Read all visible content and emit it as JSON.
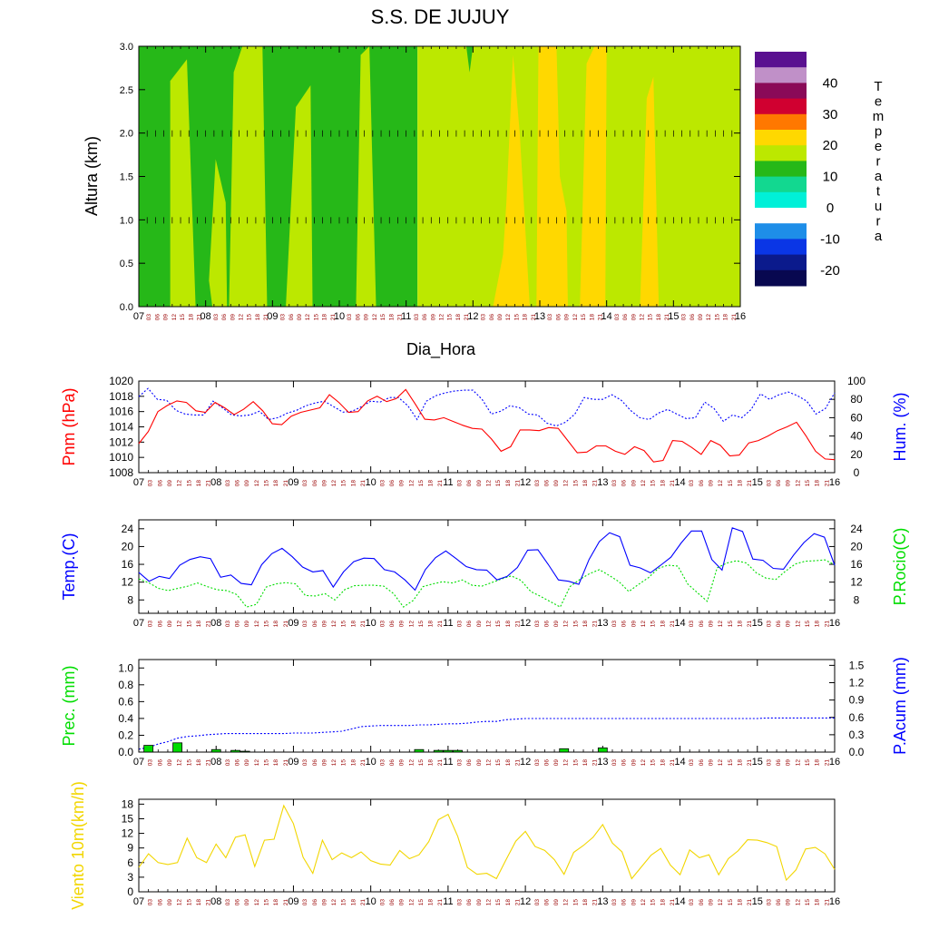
{
  "title": "S.S. DE JUJUY",
  "colors": {
    "pnm": "#ff0000",
    "hum": "#0000ff",
    "temp": "#0000ff",
    "dew": "#00dd00",
    "prec_bar": "#00dd00",
    "pacum": "#0000ff",
    "wind": "#f2d600",
    "hour_tick": "#990000"
  },
  "days": [
    "07",
    "08",
    "09",
    "10",
    "11",
    "12",
    "13",
    "14",
    "15",
    "16"
  ],
  "hours": [
    "03",
    "06",
    "09",
    "12",
    "15",
    "18",
    "21"
  ],
  "chart_data": [
    {
      "type": "heatmap",
      "ylabel": "Altura (km)",
      "xlabel": "Dia_Hora",
      "ylim": [
        0,
        3
      ],
      "yticks": [
        "0.0",
        "0.5",
        "1.0",
        "1.5",
        "2.0",
        "2.5",
        "3.0"
      ],
      "colorbar": {
        "label": "Temperatura",
        "tick_labels": [
          "40",
          "30",
          "20",
          "10",
          "0",
          "-10",
          "-20"
        ],
        "levels": [
          {
            "range": "<-20",
            "color": "#080850"
          },
          {
            "range": "-20..-15",
            "color": "#0b1a8c"
          },
          {
            "range": "-15..-10",
            "color": "#0a36e6"
          },
          {
            "range": "-10..-5",
            "color": "#1e8ee8"
          },
          {
            "range": "-5..0",
            "color": "#ffffff"
          },
          {
            "range": "0..5",
            "color": "#00f0d8"
          },
          {
            "range": "5..10",
            "color": "#12d890"
          },
          {
            "range": "10..15",
            "color": "#26b818"
          },
          {
            "range": "15..20",
            "color": "#bce800"
          },
          {
            "range": "20..25",
            "color": "#ffd800"
          },
          {
            "range": "25..30",
            "color": "#ff7800"
          },
          {
            "range": "30..35",
            "color": "#d00030"
          },
          {
            "range": "35..40",
            "color": "#8a0a58"
          },
          {
            "range": "40..45",
            "color": "#c090c8"
          },
          {
            "range": ">45",
            "color": "#5a1090"
          }
        ]
      }
    },
    {
      "type": "line",
      "ylabel_left": "Pnm (hPa)",
      "ylabel_right": "Hum. (%)",
      "ylim_left": [
        1008,
        1020
      ],
      "ylim_right": [
        0,
        100
      ],
      "yticks_left": [
        "1008",
        "1010",
        "1012",
        "1014",
        "1016",
        "1018",
        "1020"
      ],
      "yticks_right": [
        "0",
        "20",
        "40",
        "60",
        "80",
        "100"
      ],
      "series": [
        {
          "values": [
            1011.8,
            1013.4,
            1016.0,
            1016.8,
            1017.4,
            1017.2,
            1016.1,
            1015.9,
            1017.2,
            1016.5,
            1015.6,
            1016.3,
            1017.3,
            1016.1,
            1014.4,
            1014.3,
            1015.4,
            1015.9,
            1016.2,
            1016.5,
            1018.2,
            1017.2,
            1015.9,
            1016.0,
            1017.4,
            1018.0,
            1017.3,
            1017.7,
            1018.9,
            1017.0,
            1015.0,
            1014.9,
            1015.2,
            1014.7,
            1014.2,
            1013.8,
            1013.7,
            1012.4,
            1010.8,
            1011.4,
            1013.6,
            1013.6,
            1013.5,
            1013.9,
            1013.8,
            1012.2,
            1010.6,
            1010.7,
            1011.5,
            1011.5,
            1010.8,
            1010.4,
            1011.4,
            1010.9,
            1009.4,
            1009.6,
            1012.2,
            1012.1,
            1011.3,
            1010.4,
            1012.2,
            1011.6,
            1010.2,
            1010.3,
            1011.9,
            1012.2,
            1012.8,
            1013.5,
            1014.0,
            1014.6,
            1012.8,
            1010.8,
            1009.8,
            1009.7
          ]
        },
        {
          "values": [
            83,
            92,
            80,
            79,
            68,
            64,
            63,
            63,
            78,
            71,
            63,
            62,
            63,
            67,
            58,
            60,
            65,
            68,
            73,
            76,
            78,
            72,
            66,
            67,
            72,
            78,
            77,
            82,
            82,
            73,
            58,
            78,
            84,
            87,
            89,
            90,
            90,
            80,
            64,
            67,
            73,
            71,
            64,
            63,
            54,
            51,
            55,
            64,
            82,
            80,
            80,
            85,
            79,
            68,
            60,
            58,
            65,
            69,
            64,
            59,
            60,
            77,
            70,
            56,
            63,
            60,
            69,
            86,
            80,
            85,
            88,
            84,
            78,
            64,
            70,
            87
          ]
        }
      ]
    },
    {
      "type": "line",
      "ylabel_left": "Temp.(C)",
      "ylabel_right": "P.Rocio(C)",
      "ylim": [
        5,
        26
      ],
      "yticks_left": [
        "8",
        "12",
        "16",
        "20",
        "24"
      ],
      "yticks_right": [
        "8",
        "12",
        "16",
        "20",
        "24"
      ],
      "series": [
        {
          "values": [
            14.2,
            12.2,
            13.3,
            12.8,
            15.8,
            17.1,
            17.7,
            17.3,
            13.1,
            13.6,
            11.7,
            11.4,
            15.9,
            18.4,
            19.6,
            17.7,
            15.4,
            14.3,
            14.6,
            10.9,
            14.3,
            16.6,
            17.4,
            17.3,
            14.8,
            14.3,
            12.5,
            10.2,
            14.8,
            17.5,
            19.0,
            17.3,
            15.5,
            14.8,
            14.7,
            12.5,
            13.3,
            15.3,
            19.2,
            19.3,
            16.0,
            12.5,
            12.2,
            11.5,
            17.1,
            21.1,
            23.1,
            22.2,
            15.8,
            15.2,
            14.1,
            15.8,
            17.6,
            20.8,
            23.5,
            23.5,
            17.1,
            14.7,
            24.2,
            23.4,
            17.2,
            16.9,
            15.1,
            14.9,
            18.1,
            20.9,
            22.9,
            22.1,
            15.8
          ]
        },
        {
          "values": [
            12.7,
            11.9,
            10.6,
            10.1,
            10.6,
            11.1,
            11.8,
            11.0,
            10.3,
            10.1,
            9.2,
            6.4,
            7.0,
            10.9,
            11.6,
            11.9,
            11.6,
            9.0,
            8.9,
            9.4,
            8.0,
            10.3,
            11.2,
            11.3,
            11.3,
            11.1,
            9.4,
            6.4,
            7.9,
            11.0,
            11.6,
            12.1,
            11.8,
            12.5,
            11.3,
            11.1,
            11.9,
            12.7,
            13.4,
            12.4,
            9.9,
            8.8,
            7.6,
            6.4,
            11.0,
            12.6,
            13.9,
            14.8,
            13.5,
            12.1,
            9.9,
            11.5,
            13.0,
            15.1,
            15.8,
            15.6,
            11.6,
            9.6,
            7.7,
            15.2,
            16.3,
            16.8,
            16.3,
            14.1,
            12.9,
            12.6,
            14.5,
            16.1,
            16.7,
            16.8,
            17.0,
            15.9
          ]
        }
      ]
    },
    {
      "type": "bar",
      "ylabel_left": "Prec. (mm)",
      "ylabel_right": "P.Acum (mm)",
      "ylim_left": [
        0,
        1.1
      ],
      "ylim_right": [
        0,
        1.6
      ],
      "yticks_left": [
        "0.0",
        "0.2",
        "0.4",
        "0.6",
        "0.8",
        "1.0"
      ],
      "yticks_right": [
        "0.0",
        "0.3",
        "0.6",
        "0.9",
        "1.2",
        "1.5"
      ],
      "bars": [
        {
          "x": 1,
          "value": 0.08
        },
        {
          "x": 4,
          "value": 0.11
        },
        {
          "x": 8,
          "value": 0.03
        },
        {
          "x": 10,
          "value": 0.02
        },
        {
          "x": 11,
          "value": 0.01
        },
        {
          "x": 29,
          "value": 0.03
        },
        {
          "x": 31,
          "value": 0.02
        },
        {
          "x": 32,
          "value": 0.02
        },
        {
          "x": 33,
          "value": 0.02
        },
        {
          "x": 44,
          "value": 0.04
        },
        {
          "x": 48,
          "value": 0.05
        }
      ],
      "acum": [
        0.05,
        0.08,
        0.14,
        0.18,
        0.24,
        0.27,
        0.28,
        0.3,
        0.31,
        0.32,
        0.32,
        0.32,
        0.32,
        0.32,
        0.32,
        0.32,
        0.33,
        0.33,
        0.33,
        0.34,
        0.35,
        0.36,
        0.4,
        0.44,
        0.45,
        0.46,
        0.46,
        0.46,
        0.46,
        0.47,
        0.47,
        0.48,
        0.49,
        0.49,
        0.5,
        0.52,
        0.53,
        0.53,
        0.56,
        0.57,
        0.58,
        0.58,
        0.58,
        0.58,
        0.58,
        0.58,
        0.58,
        0.58,
        0.58,
        0.58,
        0.58,
        0.58,
        0.58,
        0.58,
        0.58,
        0.58,
        0.58,
        0.58,
        0.58,
        0.58,
        0.58,
        0.58,
        0.58,
        0.58,
        0.58,
        0.59,
        0.59,
        0.59,
        0.59,
        0.59,
        0.59,
        0.59,
        0.59
      ]
    },
    {
      "type": "line",
      "ylabel_left": "Viento 10m(km/h)",
      "ylim": [
        0,
        19
      ],
      "yticks_left": [
        "0",
        "3",
        "6",
        "9",
        "12",
        "15",
        "18"
      ],
      "series": [
        {
          "values": [
            5.0,
            7.8,
            6.0,
            5.6,
            6.0,
            11.0,
            7.0,
            6.0,
            9.8,
            7.0,
            11.2,
            11.7,
            5.2,
            10.6,
            10.8,
            17.7,
            14.0,
            7.1,
            3.8,
            10.6,
            6.6,
            8.0,
            7.0,
            8.2,
            6.4,
            5.7,
            5.5,
            8.5,
            6.8,
            7.6,
            10.3,
            14.8,
            15.9,
            11.4,
            5.0,
            3.6,
            3.8,
            2.7,
            6.6,
            10.4,
            12.4,
            9.3,
            8.5,
            6.6,
            3.6,
            8.1,
            9.5,
            11.2,
            13.8,
            10.0,
            8.2,
            2.7,
            5.1,
            7.5,
            8.9,
            5.5,
            3.5,
            8.6,
            7.0,
            7.6,
            3.5,
            6.8,
            8.4,
            10.7,
            10.6,
            10.1,
            9.3,
            2.4,
            4.5,
            8.8,
            9.1,
            7.8,
            4.6
          ]
        }
      ]
    }
  ]
}
